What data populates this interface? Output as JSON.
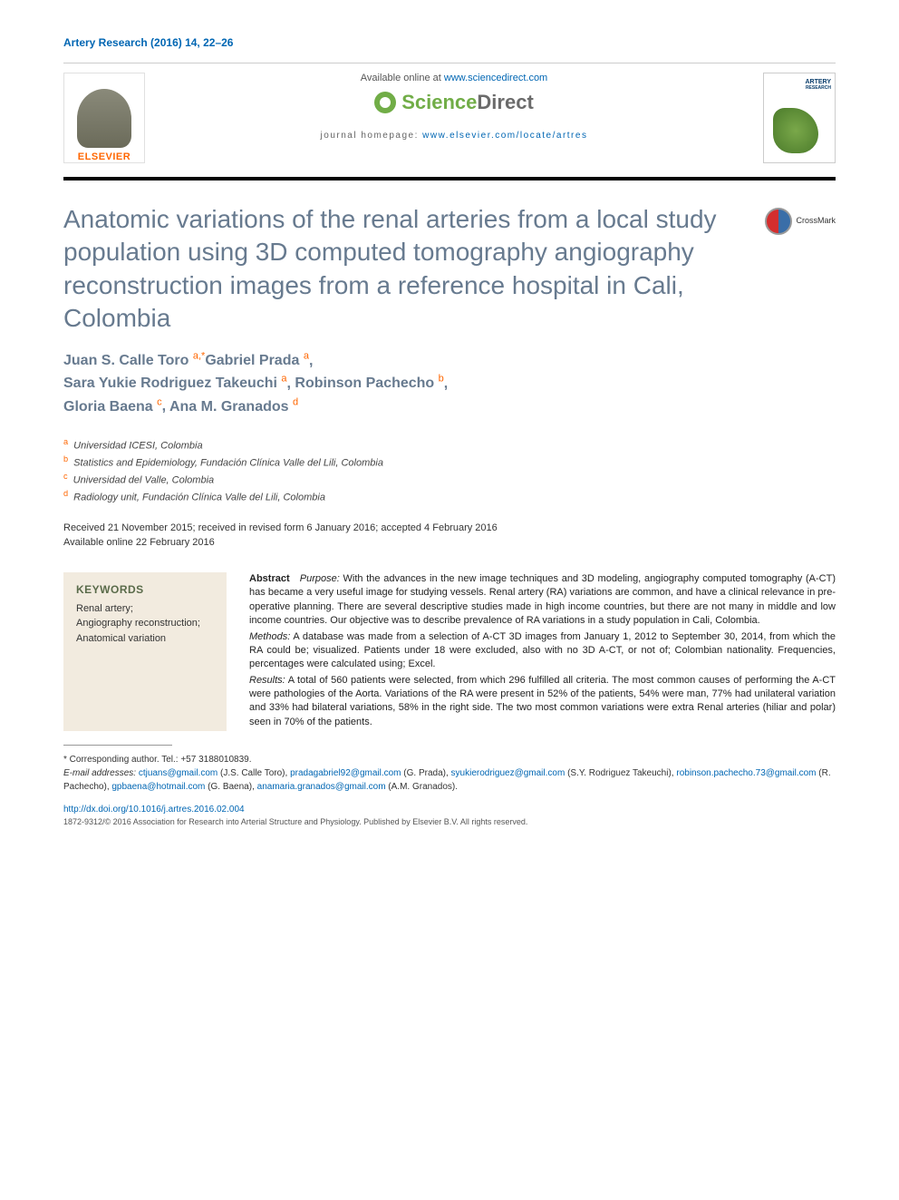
{
  "citation": "Artery Research (2016) 14, 22–26",
  "header": {
    "available_prefix": "Available online at ",
    "available_link": "www.sciencedirect.com",
    "sd_logo_green": "Science",
    "sd_logo_gray": "Direct",
    "homepage_prefix": "journal homepage: ",
    "homepage_link": "www.elsevier.com/locate/artres",
    "elsevier": "ELSEVIER",
    "cover_title": "ARTERY",
    "cover_sub": "RESEARCH"
  },
  "crossmark": "CrossMark",
  "title": "Anatomic variations of the renal arteries from a local study population using 3D computed tomography angiography reconstruction images from a reference hospital in Cali, Colombia",
  "authors": [
    {
      "name": "Juan S. Calle Toro",
      "aff": "a,",
      "corr": "*"
    },
    {
      "name": "Gabriel Prada",
      "aff": "a",
      "sep": ","
    },
    {
      "name": "Sara Yukie Rodriguez Takeuchi",
      "aff": "a",
      "sep": ","
    },
    {
      "name": "Robinson Pachecho",
      "aff": "b",
      "sep": ","
    },
    {
      "name": "Gloria Baena",
      "aff": "c",
      "sep": ","
    },
    {
      "name": "Ana M. Granados",
      "aff": "d",
      "sep": ""
    }
  ],
  "affiliations": [
    {
      "sup": "a",
      "text": "Universidad ICESI, Colombia"
    },
    {
      "sup": "b",
      "text": "Statistics and Epidemiology, Fundación Clínica Valle del Lili, Colombia"
    },
    {
      "sup": "c",
      "text": "Universidad del Valle, Colombia"
    },
    {
      "sup": "d",
      "text": "Radiology unit, Fundación Clínica Valle del Lili, Colombia"
    }
  ],
  "dates": {
    "line1": "Received 21 November 2015; received in revised form 6 January 2016; accepted 4 February 2016",
    "line2": "Available online 22 February 2016"
  },
  "keywords": {
    "title": "KEYWORDS",
    "items": "Renal artery;\nAngiography reconstruction;\nAnatomical variation"
  },
  "abstract": {
    "label": "Abstract",
    "purpose_label": "Purpose:",
    "purpose": "With the advances in the new image techniques and 3D modeling, angiography computed tomography (A-CT) has became a very useful image for studying vessels. Renal artery (RA) variations are common, and have a clinical relevance in pre-operative planning. There are several descriptive studies made in high income countries, but there are not many in middle and low income countries. Our objective was to describe prevalence of RA variations in a study population in Cali, Colombia.",
    "methods_label": "Methods:",
    "methods": "A database was made from a selection of A-CT 3D images from January 1, 2012 to September 30, 2014, from which the RA could be; visualized. Patients under 18 were excluded, also with no 3D A-CT, or not of; Colombian nationality. Frequencies, percentages were calculated using; Excel.",
    "results_label": "Results:",
    "results": "A total of 560 patients were selected, from which 296 fulfilled all criteria. The most common causes of performing the A-CT were pathologies of the Aorta. Variations of the RA were present in 52% of the patients, 54% were man, 77% had unilateral variation and 33% had bilateral variations, 58% in the right side. The two most common variations were extra Renal arteries (hiliar and polar) seen in 70% of the patients."
  },
  "corresponding": {
    "star_line": "* Corresponding author. Tel.: +57 3188010839.",
    "email_label": "E-mail addresses:",
    "emails": [
      {
        "addr": "ctjuans@gmail.com",
        "who": "(J.S. Calle Toro)"
      },
      {
        "addr": "pradagabriel92@gmail.com",
        "who": "(G. Prada)"
      },
      {
        "addr": "syukierodriguez@gmail.com",
        "who": "(S.Y. Rodriguez Takeuchi)"
      },
      {
        "addr": "robinson.pachecho.73@gmail.com",
        "who": "(R. Pachecho)"
      },
      {
        "addr": "gpbaena@hotmail.com",
        "who": "(G. Baena)"
      },
      {
        "addr": "anamaria.granados@gmail.com",
        "who": "(A.M. Granados)."
      }
    ]
  },
  "doi": "http://dx.doi.org/10.1016/j.artres.2016.02.004",
  "copyright": "1872-9312/© 2016 Association for Research into Arterial Structure and Physiology. Published by Elsevier B.V. All rights reserved."
}
